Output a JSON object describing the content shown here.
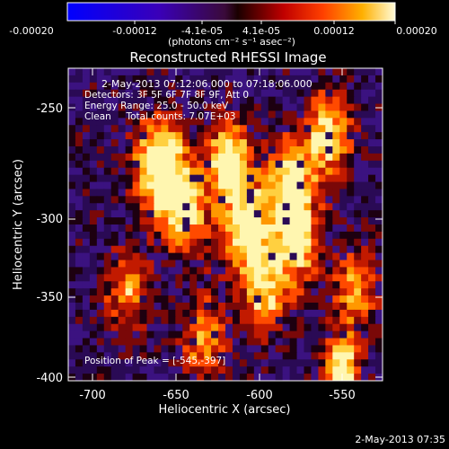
{
  "colorbar": {
    "ticks": [
      "-0.00020",
      "-0.00012",
      "-4.1e-05",
      "4.1e-05",
      "0.00012",
      "0.00020"
    ],
    "unit_label": "(photons cm⁻² s⁻¹ asec⁻²)",
    "range": [
      -0.0002,
      0.0002
    ]
  },
  "plot": {
    "title": "Reconstructed RHESSI Image",
    "xlabel": "Heliocentric X (arcsec)",
    "ylabel": "Heliocentric Y (arcsec)",
    "x_ticks": [
      "-700",
      "-650",
      "-600",
      "-550"
    ],
    "y_ticks": [
      "-250",
      "-300",
      "-350",
      "-400"
    ],
    "xlim": [
      -712,
      -524
    ],
    "ylim": [
      -401,
      -219
    ],
    "annotations": [
      "2-May-2013 07:12:06.000 to 07:18:06.000",
      "Detectors: 3F 5F 6F 7F 8F 9F, Att 0",
      "Energy Range: 25.0 - 50.0 keV",
      "Clean     Total counts: 7.07E+03"
    ],
    "peak_label": "Position of Peak = [-545,-397]",
    "footer_date": "2-May-2013 07:35"
  }
}
